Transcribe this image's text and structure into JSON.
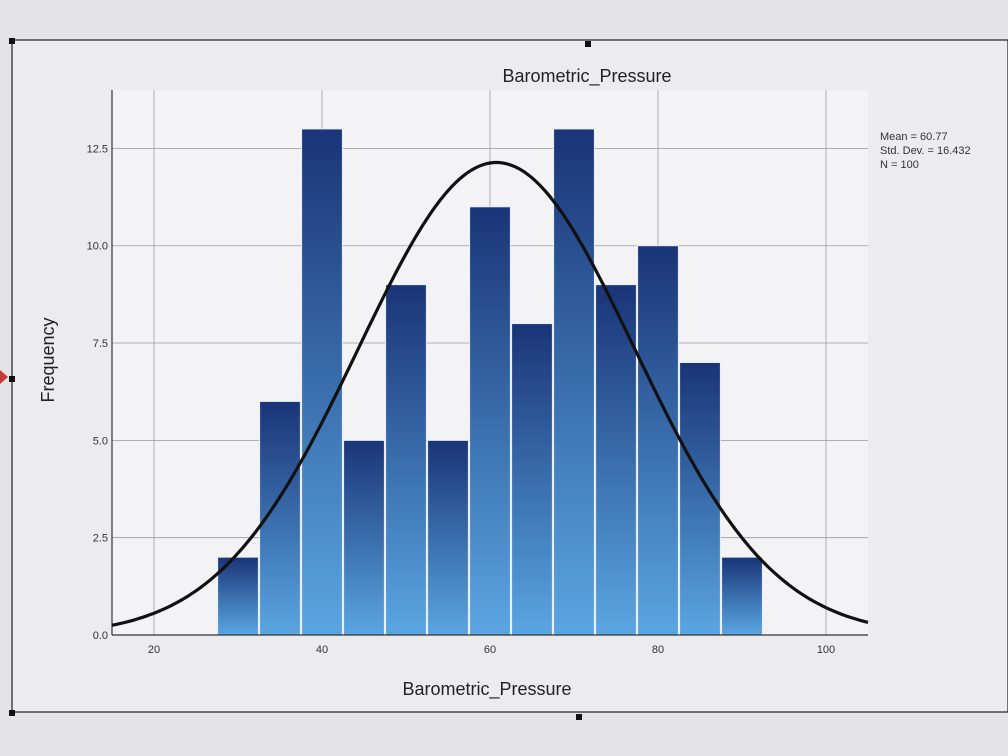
{
  "chart_data": {
    "type": "bar",
    "title": "Barometric_Pressure",
    "xlabel": "Barometric_Pressure",
    "ylabel": "Frequency",
    "xlim": [
      15,
      105
    ],
    "ylim": [
      0,
      14
    ],
    "x_ticks": [
      "20",
      "40",
      "60",
      "80",
      "100"
    ],
    "x_tick_values": [
      20,
      40,
      60,
      80,
      100
    ],
    "y_ticks": [
      "0.0",
      "2.5",
      "5.0",
      "7.5",
      "10.0",
      "12.5"
    ],
    "y_tick_values": [
      0,
      2.5,
      5,
      7.5,
      10,
      12.5
    ],
    "bins": [
      {
        "x0": 27.5,
        "x1": 32.5,
        "count": 2
      },
      {
        "x0": 32.5,
        "x1": 37.5,
        "count": 6
      },
      {
        "x0": 37.5,
        "x1": 42.5,
        "count": 13
      },
      {
        "x0": 42.5,
        "x1": 47.5,
        "count": 5
      },
      {
        "x0": 47.5,
        "x1": 52.5,
        "count": 9
      },
      {
        "x0": 52.5,
        "x1": 57.5,
        "count": 5
      },
      {
        "x0": 57.5,
        "x1": 62.5,
        "count": 11
      },
      {
        "x0": 62.5,
        "x1": 67.5,
        "count": 8
      },
      {
        "x0": 67.5,
        "x1": 72.5,
        "count": 13
      },
      {
        "x0": 72.5,
        "x1": 77.5,
        "count": 9
      },
      {
        "x0": 77.5,
        "x1": 82.5,
        "count": 10
      },
      {
        "x0": 82.5,
        "x1": 87.5,
        "count": 7
      },
      {
        "x0": 87.5,
        "x1": 92.5,
        "count": 2
      }
    ],
    "normal_curve": {
      "mean": 60.77,
      "std": 16.432,
      "n": 100,
      "bin_width": 5
    },
    "stats_text": [
      "Mean = 60.77",
      "Std. Dev. = 16.432",
      "N = 100"
    ],
    "grid": true,
    "colors": {
      "bar_top": "#1a3477",
      "bar_bottom": "#5aa6e2",
      "curve": "#111111",
      "grid": "#9a9a9a"
    }
  }
}
